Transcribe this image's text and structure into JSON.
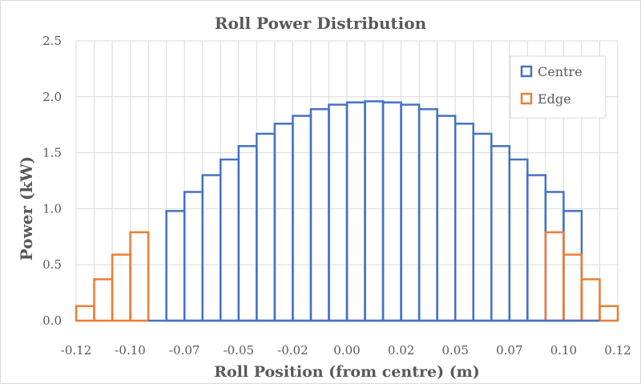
{
  "chart_data": {
    "type": "bar",
    "title": "Roll Power Distribution",
    "xlabel": "Roll Position (from centre) (m)",
    "ylabel": "Power (kW)",
    "xlim": [
      -0.1245,
      0.1245
    ],
    "ylim": [
      0,
      2.5
    ],
    "y_ticks": [
      "0.0",
      "0.5",
      "1.0",
      "1.5",
      "2.0",
      "2.5"
    ],
    "x_ticks": [
      {
        "label": "-0.12",
        "value": -0.1245
      },
      {
        "label": "-0.10",
        "value": -0.0996
      },
      {
        "label": "-0.07",
        "value": -0.0747
      },
      {
        "label": "-0.05",
        "value": -0.0498
      },
      {
        "label": "-0.02",
        "value": -0.0249
      },
      {
        "label": "0.00",
        "value": 0.0
      },
      {
        "label": "0.02",
        "value": 0.0249
      },
      {
        "label": "0.05",
        "value": 0.0498
      },
      {
        "label": "0.07",
        "value": 0.0747
      },
      {
        "label": "0.10",
        "value": 0.0996
      },
      {
        "label": "0.12",
        "value": 0.1245
      }
    ],
    "grid": true,
    "legend_position": "top-right",
    "colors": {
      "Centre": "#4472c4",
      "Edge": "#ed7d31",
      "grid": "#d9d9d9",
      "text": "#595959"
    },
    "series": [
      {
        "name": "Edge",
        "bins": [
          {
            "x0": -0.1245,
            "x1": -0.1162,
            "value": 0.13
          },
          {
            "x0": -0.1162,
            "x1": -0.1079,
            "value": 0.37
          },
          {
            "x0": -0.1079,
            "x1": -0.0996,
            "value": 0.59
          },
          {
            "x0": -0.0996,
            "x1": -0.0913,
            "value": 0.79
          },
          {
            "x0": 0.0913,
            "x1": 0.0996,
            "value": 0.79
          },
          {
            "x0": 0.0996,
            "x1": 0.1079,
            "value": 0.59
          },
          {
            "x0": 0.1079,
            "x1": 0.1162,
            "value": 0.37
          },
          {
            "x0": 0.1162,
            "x1": 0.1245,
            "value": 0.13
          }
        ]
      },
      {
        "name": "Centre",
        "x0": -0.0913,
        "width": 0.0083,
        "values": [
          0.0,
          0.98,
          1.15,
          1.3,
          1.44,
          1.56,
          1.67,
          1.76,
          1.83,
          1.89,
          1.93,
          1.95,
          1.96,
          1.95,
          1.93,
          1.89,
          1.83,
          1.76,
          1.67,
          1.56,
          1.44,
          1.3,
          1.15,
          0.98,
          0.0
        ]
      }
    ]
  }
}
